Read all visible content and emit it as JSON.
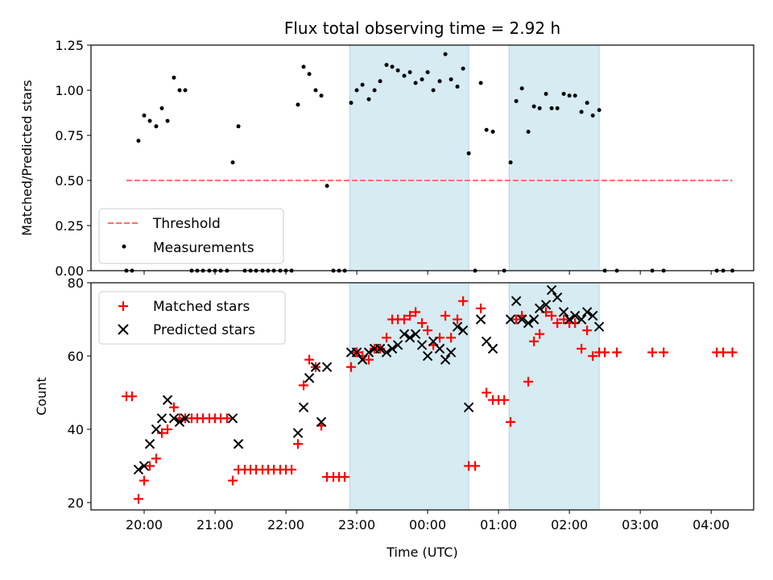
{
  "chart_data": [
    {
      "type": "scatter",
      "title": "Flux total observing time = 2.92 h",
      "ylabel": "Matched/Predicted stars",
      "xlabel": "",
      "x_unit": "hours (19:00 = 19, times after midnight continue as 24+)",
      "xlim": [
        19.25,
        28.6
      ],
      "ylim": [
        0,
        1.25
      ],
      "y_ticks": [
        "0.00",
        "0.25",
        "0.50",
        "0.75",
        "1.00",
        "1.25"
      ],
      "y_tick_values": [
        0,
        0.25,
        0.5,
        0.75,
        1.0,
        1.25
      ],
      "shaded_spans": [
        [
          22.9,
          24.58
        ],
        [
          25.15,
          26.42
        ]
      ],
      "shade_color": "#add8e6",
      "legend": {
        "position": "lower-left",
        "entries": [
          "Threshold",
          "Measurements"
        ]
      },
      "threshold": {
        "name": "Threshold",
        "y": 0.5,
        "x": [
          19.75,
          28.3
        ],
        "color": "#ff7070"
      },
      "series": [
        {
          "name": "Measurements",
          "color": "#000000",
          "points": [
            [
              19.75,
              0
            ],
            [
              19.83,
              0
            ],
            [
              19.92,
              0.72
            ],
            [
              20.0,
              0.86
            ],
            [
              20.08,
              0.83
            ],
            [
              20.17,
              0.8
            ],
            [
              20.25,
              0.9
            ],
            [
              20.33,
              0.83
            ],
            [
              20.42,
              1.07
            ],
            [
              20.5,
              1.0
            ],
            [
              20.58,
              1.0
            ],
            [
              20.67,
              0
            ],
            [
              20.75,
              0
            ],
            [
              20.83,
              0
            ],
            [
              20.92,
              0
            ],
            [
              21.0,
              0
            ],
            [
              21.08,
              0
            ],
            [
              21.17,
              0
            ],
            [
              21.25,
              0.6
            ],
            [
              21.33,
              0.8
            ],
            [
              21.42,
              0
            ],
            [
              21.5,
              0
            ],
            [
              21.58,
              0
            ],
            [
              21.67,
              0
            ],
            [
              21.75,
              0
            ],
            [
              21.83,
              0
            ],
            [
              21.92,
              0
            ],
            [
              22.0,
              0
            ],
            [
              22.08,
              0
            ],
            [
              22.17,
              0.92
            ],
            [
              22.25,
              1.13
            ],
            [
              22.33,
              1.09
            ],
            [
              22.42,
              1.0
            ],
            [
              22.5,
              0.97
            ],
            [
              22.58,
              0.47
            ],
            [
              22.67,
              0
            ],
            [
              22.75,
              0
            ],
            [
              22.83,
              0
            ],
            [
              22.92,
              0.93
            ],
            [
              23.0,
              1.0
            ],
            [
              23.08,
              1.03
            ],
            [
              23.17,
              0.95
            ],
            [
              23.25,
              1.0
            ],
            [
              23.33,
              1.05
            ],
            [
              23.42,
              1.14
            ],
            [
              23.5,
              1.13
            ],
            [
              23.58,
              1.11
            ],
            [
              23.67,
              1.08
            ],
            [
              23.75,
              1.1
            ],
            [
              23.83,
              1.04
            ],
            [
              23.92,
              1.06
            ],
            [
              24.0,
              1.1
            ],
            [
              24.08,
              1.0
            ],
            [
              24.17,
              1.05
            ],
            [
              24.25,
              1.2
            ],
            [
              24.33,
              1.06
            ],
            [
              24.42,
              1.02
            ],
            [
              24.5,
              1.12
            ],
            [
              24.58,
              0.65
            ],
            [
              24.67,
              0
            ],
            [
              24.75,
              1.04
            ],
            [
              24.83,
              0.78
            ],
            [
              24.92,
              0.77
            ],
            [
              25.08,
              0
            ],
            [
              25.17,
              0.6
            ],
            [
              25.25,
              0.94
            ],
            [
              25.33,
              1.01
            ],
            [
              25.42,
              0.77
            ],
            [
              25.5,
              0.91
            ],
            [
              25.58,
              0.9
            ],
            [
              25.67,
              0.98
            ],
            [
              25.75,
              0.9
            ],
            [
              25.83,
              0.9
            ],
            [
              25.92,
              0.98
            ],
            [
              26.0,
              0.97
            ],
            [
              26.08,
              0.97
            ],
            [
              26.17,
              0.88
            ],
            [
              26.25,
              0.93
            ],
            [
              26.33,
              0.86
            ],
            [
              26.42,
              0.89
            ],
            [
              26.5,
              0
            ],
            [
              26.67,
              0
            ],
            [
              27.17,
              0
            ],
            [
              27.33,
              0
            ],
            [
              28.08,
              0
            ],
            [
              28.17,
              0
            ],
            [
              28.3,
              0
            ]
          ]
        }
      ]
    },
    {
      "type": "scatter",
      "title": "",
      "ylabel": "Count",
      "xlabel": "Time (UTC)",
      "x_unit": "hours (19:00 = 19, times after midnight continue as 24+)",
      "xlim": [
        19.25,
        28.6
      ],
      "ylim": [
        18,
        80
      ],
      "y_ticks": [
        "20",
        "40",
        "60",
        "80"
      ],
      "y_tick_values": [
        20,
        40,
        60,
        80
      ],
      "x_ticks": [
        "20:00",
        "21:00",
        "22:00",
        "23:00",
        "00:00",
        "01:00",
        "02:00",
        "03:00",
        "04:00"
      ],
      "x_tick_values": [
        20,
        21,
        22,
        23,
        24,
        25,
        26,
        27,
        28
      ],
      "shaded_spans": [
        [
          22.9,
          24.58
        ],
        [
          25.15,
          26.42
        ]
      ],
      "shade_color": "#add8e6",
      "legend": {
        "position": "top-left",
        "entries": [
          "Matched stars",
          "Predicted stars"
        ]
      },
      "series": [
        {
          "name": "Matched stars",
          "marker": "plus",
          "color": "#ff0000",
          "points": [
            [
              19.75,
              49
            ],
            [
              19.83,
              49
            ],
            [
              19.92,
              21
            ],
            [
              20.0,
              26
            ],
            [
              20.08,
              30
            ],
            [
              20.17,
              32
            ],
            [
              20.25,
              39
            ],
            [
              20.33,
              40
            ],
            [
              20.42,
              46
            ],
            [
              20.5,
              43
            ],
            [
              20.58,
              43
            ],
            [
              20.67,
              43
            ],
            [
              20.75,
              43
            ],
            [
              20.83,
              43
            ],
            [
              20.92,
              43
            ],
            [
              21.0,
              43
            ],
            [
              21.08,
              43
            ],
            [
              21.17,
              43
            ],
            [
              21.25,
              26
            ],
            [
              21.33,
              29
            ],
            [
              21.42,
              29
            ],
            [
              21.5,
              29
            ],
            [
              21.58,
              29
            ],
            [
              21.67,
              29
            ],
            [
              21.75,
              29
            ],
            [
              21.83,
              29
            ],
            [
              21.92,
              29
            ],
            [
              22.0,
              29
            ],
            [
              22.08,
              29
            ],
            [
              22.17,
              36
            ],
            [
              22.25,
              52
            ],
            [
              22.33,
              59
            ],
            [
              22.42,
              57
            ],
            [
              22.5,
              41
            ],
            [
              22.58,
              27
            ],
            [
              22.67,
              27
            ],
            [
              22.75,
              27
            ],
            [
              22.83,
              27
            ],
            [
              22.92,
              57
            ],
            [
              23.0,
              61
            ],
            [
              23.08,
              60
            ],
            [
              23.17,
              59
            ],
            [
              23.25,
              62
            ],
            [
              23.33,
              62
            ],
            [
              23.42,
              65
            ],
            [
              23.5,
              70
            ],
            [
              23.58,
              70
            ],
            [
              23.67,
              70
            ],
            [
              23.75,
              71
            ],
            [
              23.83,
              72
            ],
            [
              23.92,
              69
            ],
            [
              24.0,
              67
            ],
            [
              24.08,
              63
            ],
            [
              24.17,
              65
            ],
            [
              24.25,
              71
            ],
            [
              24.33,
              65
            ],
            [
              24.42,
              70
            ],
            [
              24.5,
              75
            ],
            [
              24.58,
              30
            ],
            [
              24.67,
              30
            ],
            [
              24.75,
              73
            ],
            [
              24.83,
              50
            ],
            [
              24.92,
              48
            ],
            [
              25.0,
              48
            ],
            [
              25.08,
              48
            ],
            [
              25.17,
              42
            ],
            [
              25.25,
              70
            ],
            [
              25.33,
              71
            ],
            [
              25.42,
              53
            ],
            [
              25.5,
              64
            ],
            [
              25.58,
              66
            ],
            [
              25.67,
              72
            ],
            [
              25.75,
              71
            ],
            [
              25.83,
              69
            ],
            [
              25.92,
              70
            ],
            [
              26.0,
              69
            ],
            [
              26.08,
              69
            ],
            [
              26.17,
              62
            ],
            [
              26.25,
              67
            ],
            [
              26.33,
              60
            ],
            [
              26.42,
              61
            ],
            [
              26.5,
              61
            ],
            [
              26.67,
              61
            ],
            [
              27.17,
              61
            ],
            [
              27.33,
              61
            ],
            [
              28.08,
              61
            ],
            [
              28.17,
              61
            ],
            [
              28.3,
              61
            ]
          ]
        },
        {
          "name": "Predicted stars",
          "marker": "x",
          "color": "#000000",
          "points": [
            [
              19.92,
              29
            ],
            [
              20.0,
              30
            ],
            [
              20.08,
              36
            ],
            [
              20.17,
              40
            ],
            [
              20.25,
              43
            ],
            [
              20.33,
              48
            ],
            [
              20.42,
              43
            ],
            [
              20.5,
              42
            ],
            [
              20.58,
              43
            ],
            [
              21.25,
              43
            ],
            [
              21.33,
              36
            ],
            [
              22.17,
              39
            ],
            [
              22.25,
              46
            ],
            [
              22.33,
              54
            ],
            [
              22.42,
              57
            ],
            [
              22.5,
              42
            ],
            [
              22.58,
              57
            ],
            [
              22.92,
              61
            ],
            [
              23.0,
              61
            ],
            [
              23.08,
              59
            ],
            [
              23.17,
              61
            ],
            [
              23.25,
              62
            ],
            [
              23.33,
              62
            ],
            [
              23.42,
              61
            ],
            [
              23.5,
              62
            ],
            [
              23.58,
              63
            ],
            [
              23.67,
              66
            ],
            [
              23.75,
              65
            ],
            [
              23.83,
              66
            ],
            [
              23.92,
              63
            ],
            [
              24.0,
              60
            ],
            [
              24.08,
              64
            ],
            [
              24.17,
              62
            ],
            [
              24.25,
              59
            ],
            [
              24.33,
              61
            ],
            [
              24.42,
              68
            ],
            [
              24.5,
              67
            ],
            [
              24.58,
              46
            ],
            [
              24.75,
              70
            ],
            [
              24.83,
              64
            ],
            [
              24.92,
              62
            ],
            [
              25.17,
              70
            ],
            [
              25.25,
              75
            ],
            [
              25.33,
              70
            ],
            [
              25.42,
              69
            ],
            [
              25.5,
              70
            ],
            [
              25.58,
              73
            ],
            [
              25.67,
              74
            ],
            [
              25.75,
              78
            ],
            [
              25.83,
              76
            ],
            [
              25.92,
              72
            ],
            [
              26.0,
              70
            ],
            [
              26.08,
              71
            ],
            [
              26.17,
              70
            ],
            [
              26.25,
              72
            ],
            [
              26.33,
              71
            ],
            [
              26.42,
              68
            ]
          ]
        }
      ]
    }
  ]
}
